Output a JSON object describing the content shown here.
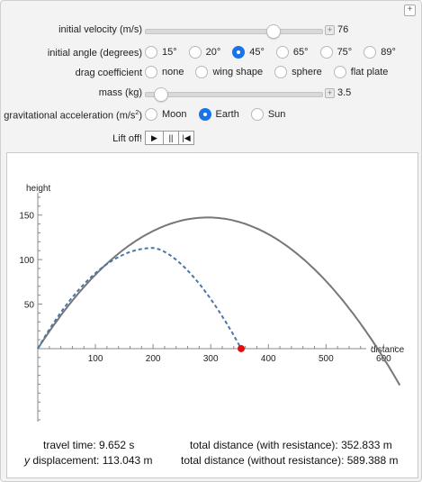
{
  "controls": {
    "initial_velocity": {
      "label": "initial velocity (m/s)",
      "value": "76",
      "fraction": 0.72
    },
    "initial_angle": {
      "label": "initial angle (degrees)",
      "options": [
        "15°",
        "20°",
        "45°",
        "65°",
        "75°",
        "89°"
      ],
      "selected": 2
    },
    "drag_coefficient": {
      "label": "drag coefficient",
      "options": [
        "none",
        "wing shape",
        "sphere",
        "flat plate"
      ],
      "selected": -1
    },
    "mass": {
      "label": "mass (kg)",
      "value": "3.5",
      "fraction": 0.08
    },
    "gravity": {
      "label_main": "gravitational acceleration (m/s",
      "label_sup": "2",
      "label_end": ")",
      "options": [
        "Moon",
        "Earth",
        "Sun"
      ],
      "selected": 1
    },
    "liftoff": {
      "label": "Lift off!",
      "play": "▶",
      "pause": "||",
      "reset": "|◀"
    }
  },
  "chart_data": {
    "type": "line",
    "xlabel": "distance",
    "ylabel": "height",
    "xlim": [
      0,
      640
    ],
    "ylim": [
      -82,
      175
    ],
    "x_ticks": [
      100,
      200,
      300,
      400,
      500,
      600
    ],
    "y_ticks": [
      50,
      100,
      150
    ],
    "series": [
      {
        "style": "solid",
        "color": "#777777",
        "velocity": 76,
        "angle_deg": 45,
        "g": 9.8,
        "range": 589.388,
        "max_height": 147.3
      },
      {
        "style": "dashed",
        "color": "#4a77a8",
        "range": 352.833,
        "max_height": 113.043,
        "peak_x": 200
      }
    ],
    "marker": {
      "x": 352.833,
      "y": 0,
      "color": "#e01010"
    }
  },
  "readouts": {
    "travel_time": "travel time: 9.652 s",
    "y_disp_var": "y",
    "y_disp_rest": " displacement: 113.043 m",
    "dist_with": "total distance (with resistance): 352.833 m",
    "dist_without": "total distance (without resistance): 589.388 m"
  }
}
